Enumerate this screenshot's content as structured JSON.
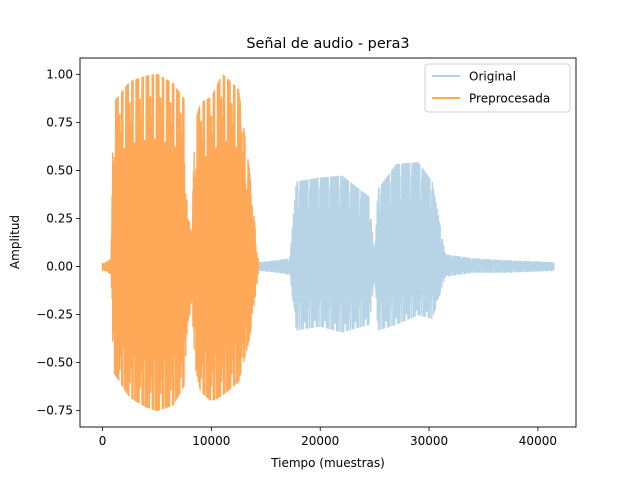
{
  "chart_data": {
    "type": "line",
    "title": "Señal de audio - pera3",
    "xlabel": "Tiempo (muestras)",
    "ylabel": "Amplitud",
    "xlim": [
      -2070,
      43500
    ],
    "ylim": [
      -0.835,
      1.085
    ],
    "xticks": [
      0,
      10000,
      20000,
      30000,
      40000
    ],
    "xtick_labels": [
      "0",
      "10000",
      "20000",
      "30000",
      "40000"
    ],
    "yticks": [
      -0.75,
      -0.5,
      -0.25,
      0.0,
      0.25,
      0.5,
      0.75,
      1.0
    ],
    "ytick_labels": [
      "−0.75",
      "−0.50",
      "−0.25",
      "0.00",
      "0.25",
      "0.50",
      "0.75",
      "1.00"
    ],
    "grid": false,
    "legend_position": "top-right",
    "series": [
      {
        "name": "Original",
        "color": "#b7d4e6",
        "x": [
          0,
          500,
          800,
          2500,
          5000,
          7500,
          8000,
          10000,
          12500,
          14500,
          16000,
          17200,
          17800,
          20000,
          22000,
          24500,
          25000,
          25300,
          27000,
          29000,
          30300,
          31500,
          34000,
          37000,
          41500
        ],
        "max": [
          0.01,
          0.01,
          0.025,
          0.03,
          0.025,
          0.025,
          0.015,
          0.02,
          0.02,
          0.02,
          0.03,
          0.04,
          0.44,
          0.46,
          0.47,
          0.36,
          0.06,
          0.4,
          0.53,
          0.54,
          0.44,
          0.06,
          0.04,
          0.03,
          0.02
        ],
        "min": [
          -0.01,
          -0.01,
          -0.025,
          -0.03,
          -0.025,
          -0.025,
          -0.015,
          -0.02,
          -0.02,
          -0.02,
          -0.03,
          -0.04,
          -0.33,
          -0.31,
          -0.34,
          -0.3,
          -0.06,
          -0.33,
          -0.3,
          -0.25,
          -0.27,
          -0.05,
          -0.03,
          -0.03,
          -0.02
        ]
      },
      {
        "name": "Preprocesada",
        "color": "#ffa857",
        "x": [
          0,
          400,
          800,
          1000,
          2500,
          4000,
          5000,
          6500,
          7500,
          7800,
          8200,
          8500,
          9000,
          10000,
          11000,
          12500,
          13500,
          14300
        ],
        "max": [
          0.02,
          0.02,
          0.05,
          0.85,
          0.96,
          0.99,
          1.0,
          0.95,
          0.87,
          0.25,
          0.2,
          0.75,
          0.85,
          0.88,
          1.0,
          0.92,
          0.5,
          0.04
        ],
        "min": [
          -0.02,
          -0.02,
          -0.05,
          -0.55,
          -0.68,
          -0.73,
          -0.75,
          -0.72,
          -0.62,
          -0.3,
          -0.2,
          -0.52,
          -0.65,
          -0.7,
          -0.67,
          -0.6,
          -0.38,
          -0.04
        ]
      }
    ]
  }
}
